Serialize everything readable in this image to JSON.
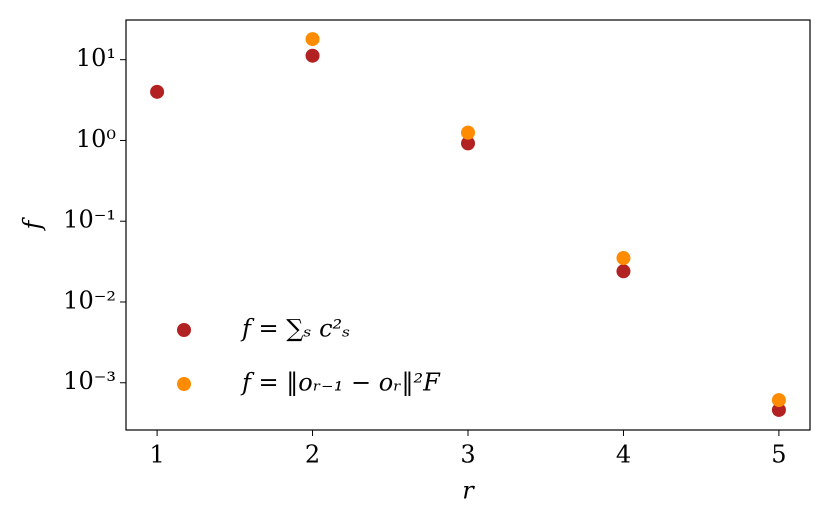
{
  "chart_data": {
    "type": "scatter",
    "x_label": "r",
    "y_label": "f",
    "yscale": "log",
    "xlim": [
      0.8,
      5.2
    ],
    "ylim": [
      0.00026,
      31
    ],
    "xticks": [
      1,
      2,
      3,
      4,
      5
    ],
    "yticks": [
      {
        "value": 0.001,
        "label": "10⁻³"
      },
      {
        "value": 0.01,
        "label": "10⁻²"
      },
      {
        "value": 0.1,
        "label": "10⁻¹"
      },
      {
        "value": 1,
        "label": "10⁰"
      },
      {
        "value": 10,
        "label": "10¹"
      }
    ],
    "legend": "lower left",
    "series": [
      {
        "name": "f = ∑ₛ c²ₛ",
        "color": "#b22222",
        "x": [
          1,
          2,
          3,
          4,
          5
        ],
        "values": [
          4.0,
          11.2,
          0.92,
          0.024,
          0.00046
        ]
      },
      {
        "name": "f = ‖oᵣ₋₁ − oᵣ‖²F",
        "color": "#ff8c00",
        "x": [
          2,
          3,
          4,
          5
        ],
        "values": [
          18,
          1.25,
          0.035,
          0.00061
        ]
      }
    ]
  }
}
